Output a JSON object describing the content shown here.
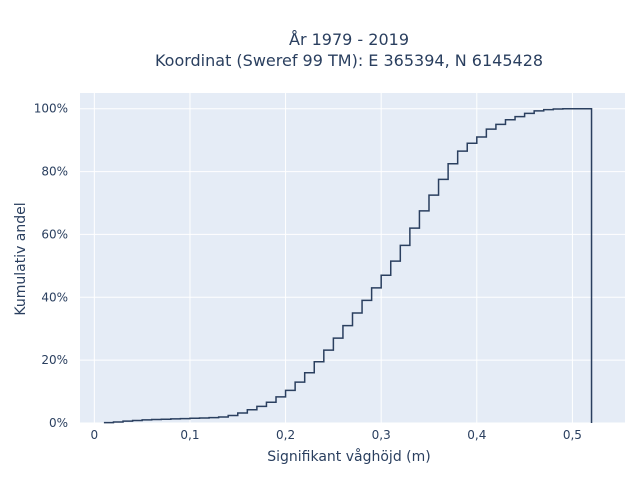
{
  "chart_data": {
    "type": "line",
    "title_line1": "År 1979 - 2019",
    "title_line2": "Koordinat (Sweref 99 TM): E 365394, N 6145428",
    "xlabel": "Signifikant våghöjd (m)",
    "ylabel": "Kumulativ andel",
    "xlim": [
      -0.015,
      0.555
    ],
    "ylim": [
      0,
      1.05
    ],
    "x_ticks": [
      0,
      0.1,
      0.2,
      0.3,
      0.4,
      0.5
    ],
    "x_tick_labels": [
      "0",
      "0,1",
      "0,2",
      "0,3",
      "0,4",
      "0,5"
    ],
    "y_ticks": [
      0,
      0.2,
      0.4,
      0.6,
      0.8,
      1.0
    ],
    "y_tick_labels": [
      "0%",
      "20%",
      "40%",
      "60%",
      "80%",
      "100%"
    ],
    "grid": true,
    "legend": "none",
    "line_color": "#2a3f5f",
    "plot_bg": "#e5ecf6",
    "step_points": {
      "x": [
        0.01,
        0.02,
        0.03,
        0.04,
        0.05,
        0.06,
        0.07,
        0.08,
        0.09,
        0.1,
        0.11,
        0.12,
        0.13,
        0.14,
        0.15,
        0.16,
        0.17,
        0.18,
        0.19,
        0.2,
        0.21,
        0.22,
        0.23,
        0.24,
        0.25,
        0.26,
        0.27,
        0.28,
        0.29,
        0.3,
        0.31,
        0.32,
        0.33,
        0.34,
        0.35,
        0.36,
        0.37,
        0.38,
        0.39,
        0.4,
        0.41,
        0.42,
        0.43,
        0.44,
        0.45,
        0.46,
        0.47,
        0.48,
        0.49,
        0.5,
        0.51,
        0.52
      ],
      "y": [
        0.001,
        0.003,
        0.006,
        0.008,
        0.01,
        0.011,
        0.012,
        0.013,
        0.014,
        0.015,
        0.016,
        0.017,
        0.019,
        0.024,
        0.032,
        0.042,
        0.053,
        0.066,
        0.083,
        0.104,
        0.13,
        0.16,
        0.195,
        0.232,
        0.27,
        0.31,
        0.35,
        0.39,
        0.43,
        0.47,
        0.515,
        0.565,
        0.62,
        0.675,
        0.725,
        0.775,
        0.825,
        0.865,
        0.89,
        0.91,
        0.935,
        0.95,
        0.965,
        0.975,
        0.985,
        0.993,
        0.997,
        0.999,
        1.0,
        1.0,
        1.0,
        0.0
      ]
    }
  }
}
